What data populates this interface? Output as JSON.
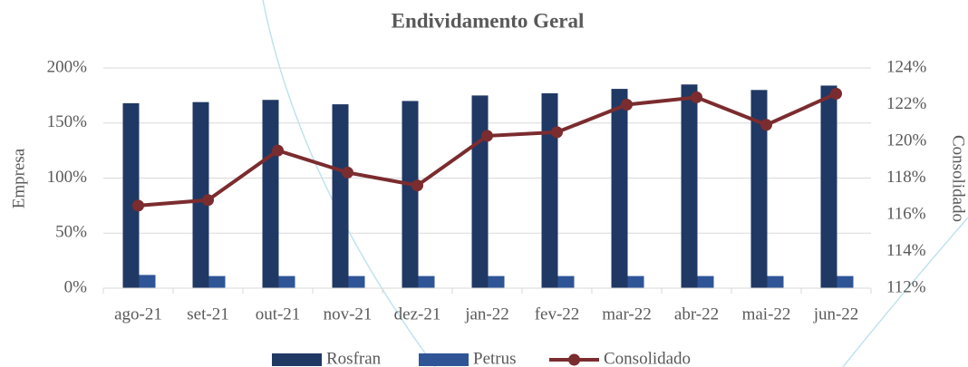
{
  "chart_data": {
    "type": "bar_line",
    "title": "Endividamento Geral",
    "y_label": "Empresa",
    "y2_label": "Consolidado",
    "categories": [
      "ago-21",
      "set-21",
      "out-21",
      "nov-21",
      "dez-21",
      "jan-22",
      "fev-22",
      "mar-22",
      "abr-22",
      "mai-22",
      "jun-22"
    ],
    "series": [
      {
        "name": "Rosfran",
        "type": "bar",
        "color": "#203864",
        "values": [
          168,
          169,
          171,
          167,
          170,
          175,
          177,
          181,
          185,
          180,
          184
        ]
      },
      {
        "name": "Petrus",
        "type": "bar",
        "color": "#2f5597",
        "values": [
          12,
          11,
          11,
          11,
          11,
          11,
          11,
          11,
          11,
          11,
          11
        ]
      },
      {
        "name": "Consolidado",
        "type": "line",
        "axis": "y2",
        "color": "#7b2c2f",
        "values": [
          116.5,
          116.8,
          119.5,
          118.3,
          117.6,
          120.3,
          120.5,
          122.0,
          122.4,
          120.9,
          122.6
        ]
      }
    ],
    "ylim": [
      0,
      200
    ],
    "yticks": [
      {
        "value": 0,
        "label": "0%"
      },
      {
        "value": 50,
        "label": "50%"
      },
      {
        "value": 100,
        "label": "100%"
      },
      {
        "value": 150,
        "label": "150%"
      },
      {
        "value": 200,
        "label": "200%"
      }
    ],
    "y2lim": [
      112,
      124
    ],
    "y2ticks": [
      {
        "value": 112,
        "label": "112%"
      },
      {
        "value": 114,
        "label": "114%"
      },
      {
        "value": 116,
        "label": "116%"
      },
      {
        "value": 118,
        "label": "118%"
      },
      {
        "value": 120,
        "label": "120%"
      },
      {
        "value": 122,
        "label": "122%"
      },
      {
        "value": 124,
        "label": "124%"
      }
    ],
    "grid": true,
    "legend": "bottom"
  }
}
